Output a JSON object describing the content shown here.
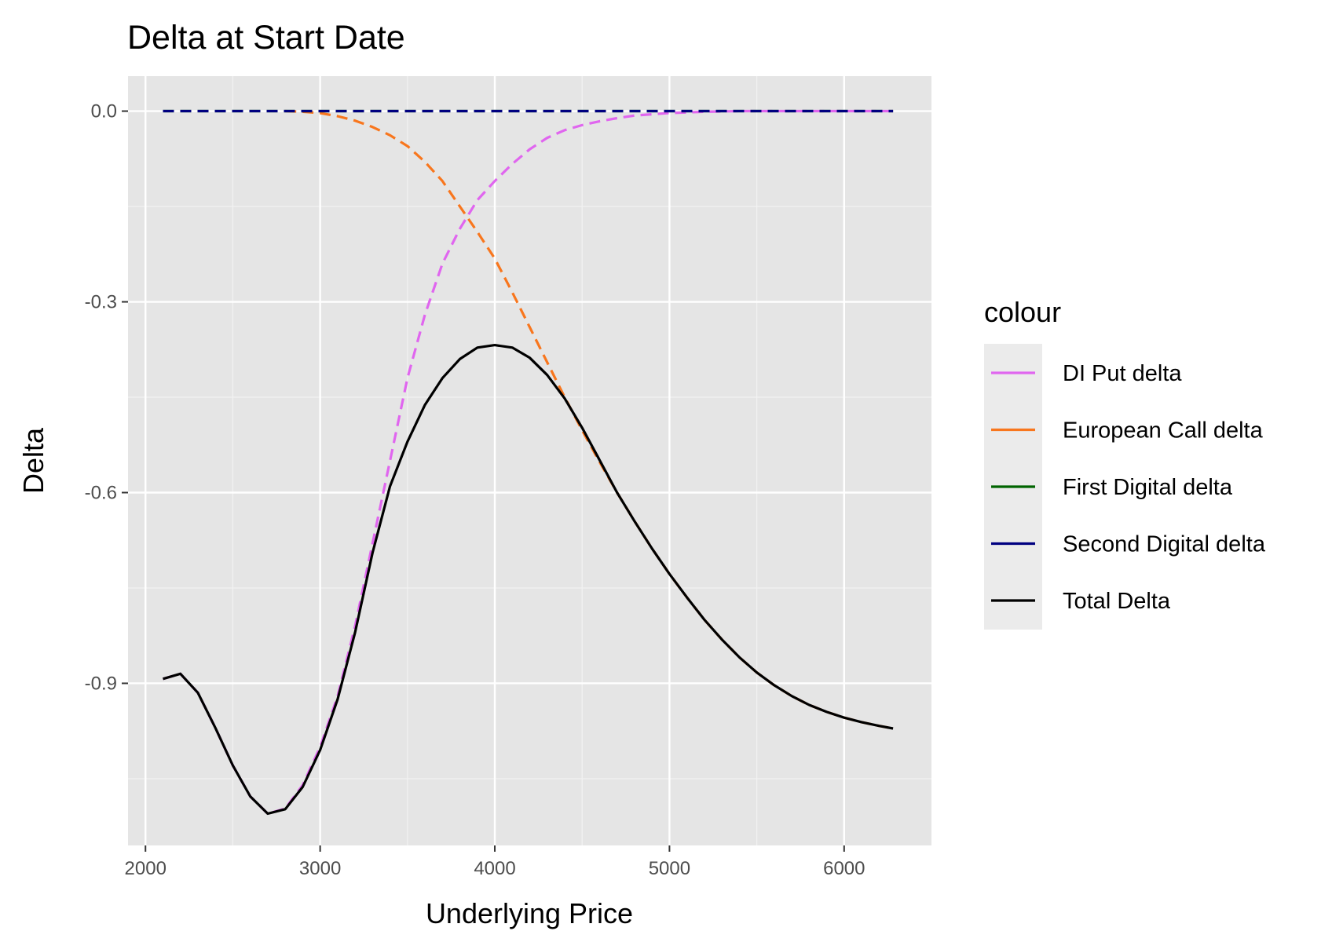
{
  "chart_data": {
    "type": "line",
    "title": "Delta at Start Date",
    "xlabel": "Underlying Price",
    "ylabel": "Delta",
    "xlim": [
      1900,
      6500
    ],
    "ylim": [
      -1.155,
      0.055
    ],
    "x_ticks": [
      2000,
      3000,
      4000,
      5000,
      6000
    ],
    "x_minor": [
      2500,
      3500,
      4500,
      5500
    ],
    "y_ticks": [
      0.0,
      -0.3,
      -0.6,
      -0.9
    ],
    "y_tick_labels": [
      "0.0",
      "-0.3",
      "-0.6",
      "-0.9"
    ],
    "y_minor": [
      -0.15,
      -0.45,
      -0.75,
      -1.05
    ],
    "grid": true,
    "legend": {
      "title": "colour",
      "position": "right"
    },
    "series": [
      {
        "name": "DI Put delta",
        "color": "#e066ef",
        "dash": true,
        "points": [
          [
            2100,
            -0.893
          ],
          [
            2200,
            -0.885
          ],
          [
            2300,
            -0.915
          ],
          [
            2400,
            -0.97
          ],
          [
            2500,
            -1.029
          ],
          [
            2600,
            -1.078
          ],
          [
            2700,
            -1.105
          ],
          [
            2800,
            -1.097
          ],
          [
            2900,
            -1.06
          ],
          [
            3000,
            -1.0
          ],
          [
            3100,
            -0.92
          ],
          [
            3200,
            -0.81
          ],
          [
            3300,
            -0.68
          ],
          [
            3400,
            -0.55
          ],
          [
            3500,
            -0.42
          ],
          [
            3600,
            -0.32
          ],
          [
            3700,
            -0.24
          ],
          [
            3800,
            -0.185
          ],
          [
            3900,
            -0.14
          ],
          [
            4000,
            -0.11
          ],
          [
            4100,
            -0.083
          ],
          [
            4200,
            -0.06
          ],
          [
            4300,
            -0.042
          ],
          [
            4400,
            -0.03
          ],
          [
            4500,
            -0.022
          ],
          [
            4600,
            -0.016
          ],
          [
            4700,
            -0.011
          ],
          [
            4800,
            -0.007
          ],
          [
            4900,
            -0.005
          ],
          [
            5000,
            -0.003
          ],
          [
            5200,
            -0.001
          ],
          [
            5400,
            0.0
          ],
          [
            6280,
            0.0
          ]
        ]
      },
      {
        "name": "European Call delta",
        "color": "#f8761d",
        "dash": true,
        "points": [
          [
            2800,
            0.0
          ],
          [
            2900,
            -0.001
          ],
          [
            3000,
            -0.003
          ],
          [
            3100,
            -0.008
          ],
          [
            3200,
            -0.015
          ],
          [
            3300,
            -0.025
          ],
          [
            3400,
            -0.038
          ],
          [
            3500,
            -0.055
          ],
          [
            3600,
            -0.08
          ],
          [
            3700,
            -0.11
          ],
          [
            3800,
            -0.15
          ],
          [
            3900,
            -0.19
          ],
          [
            4000,
            -0.232
          ],
          [
            4100,
            -0.285
          ],
          [
            4200,
            -0.34
          ],
          [
            4300,
            -0.395
          ],
          [
            4400,
            -0.45
          ],
          [
            4500,
            -0.502
          ],
          [
            4600,
            -0.552
          ],
          [
            4700,
            -0.6
          ],
          [
            4800,
            -0.645
          ],
          [
            4900,
            -0.688
          ],
          [
            5000,
            -0.728
          ],
          [
            5100,
            -0.765
          ],
          [
            5200,
            -0.8
          ],
          [
            5300,
            -0.831
          ],
          [
            5400,
            -0.859
          ],
          [
            5500,
            -0.883
          ],
          [
            5600,
            -0.903
          ],
          [
            5700,
            -0.92
          ],
          [
            5800,
            -0.934
          ],
          [
            5900,
            -0.945
          ],
          [
            6000,
            -0.954
          ],
          [
            6100,
            -0.961
          ],
          [
            6200,
            -0.967
          ],
          [
            6280,
            -0.971
          ]
        ]
      },
      {
        "name": "First Digital delta",
        "color": "#006400",
        "dash": true,
        "points": [
          [
            2100,
            0.0
          ],
          [
            6280,
            0.0
          ]
        ]
      },
      {
        "name": "Second Digital delta",
        "color": "#000080",
        "dash": true,
        "points": [
          [
            2100,
            0.0
          ],
          [
            6280,
            0.0
          ]
        ]
      },
      {
        "name": "Total Delta",
        "color": "#000000",
        "dash": false,
        "points": [
          [
            2100,
            -0.893
          ],
          [
            2200,
            -0.885
          ],
          [
            2300,
            -0.915
          ],
          [
            2400,
            -0.97
          ],
          [
            2500,
            -1.029
          ],
          [
            2600,
            -1.078
          ],
          [
            2700,
            -1.105
          ],
          [
            2800,
            -1.098
          ],
          [
            2900,
            -1.063
          ],
          [
            3000,
            -1.005
          ],
          [
            3100,
            -0.925
          ],
          [
            3200,
            -0.82
          ],
          [
            3300,
            -0.695
          ],
          [
            3400,
            -0.59
          ],
          [
            3500,
            -0.52
          ],
          [
            3600,
            -0.462
          ],
          [
            3700,
            -0.42
          ],
          [
            3800,
            -0.39
          ],
          [
            3900,
            -0.372
          ],
          [
            4000,
            -0.368
          ],
          [
            4100,
            -0.372
          ],
          [
            4200,
            -0.388
          ],
          [
            4300,
            -0.415
          ],
          [
            4400,
            -0.452
          ],
          [
            4500,
            -0.498
          ],
          [
            4600,
            -0.549
          ],
          [
            4700,
            -0.6
          ],
          [
            4800,
            -0.645
          ],
          [
            4900,
            -0.688
          ],
          [
            5000,
            -0.728
          ],
          [
            5100,
            -0.765
          ],
          [
            5200,
            -0.8
          ],
          [
            5300,
            -0.831
          ],
          [
            5400,
            -0.859
          ],
          [
            5500,
            -0.883
          ],
          [
            5600,
            -0.903
          ],
          [
            5700,
            -0.92
          ],
          [
            5800,
            -0.934
          ],
          [
            5900,
            -0.945
          ],
          [
            6000,
            -0.954
          ],
          [
            6100,
            -0.961
          ],
          [
            6200,
            -0.967
          ],
          [
            6280,
            -0.971
          ]
        ]
      }
    ]
  }
}
